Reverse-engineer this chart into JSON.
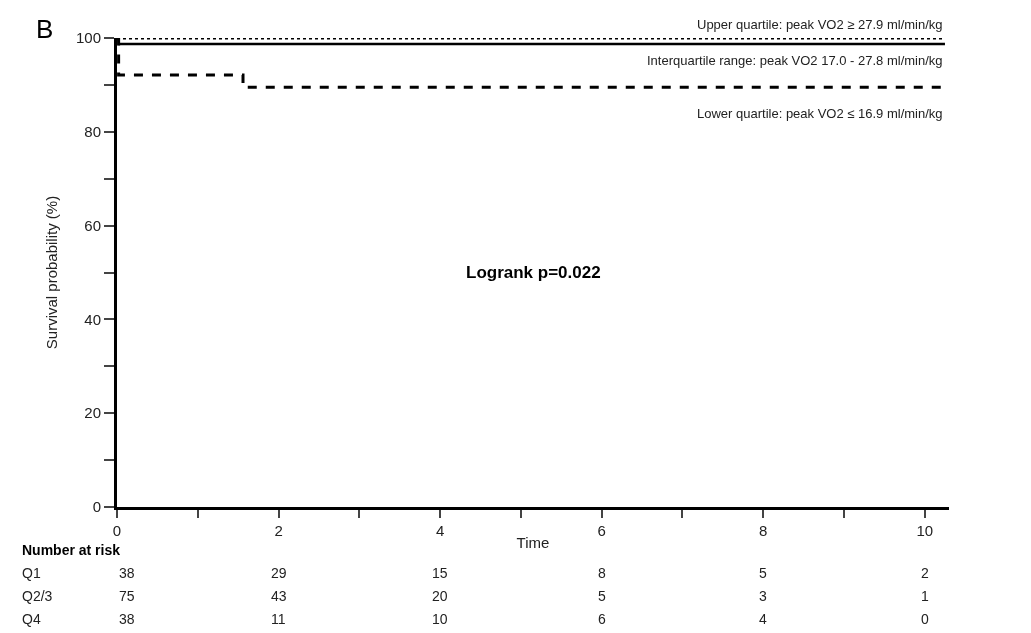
{
  "chart_data": {
    "type": "step",
    "ylabel": "Survival probability (%)",
    "xlabel": "Time",
    "xlim": [
      0,
      10.3
    ],
    "ylim": [
      0,
      100
    ],
    "xticks": [
      0,
      {
        "value": 1,
        "label": null
      },
      2,
      {
        "value": 3,
        "label": null
      },
      4,
      {
        "value": 5,
        "label": null
      },
      6,
      {
        "value": 7,
        "label": null
      },
      8,
      {
        "value": 9,
        "label": null
      },
      10
    ],
    "yticks": [
      0,
      {
        "value": 10,
        "label": null
      },
      20,
      {
        "value": 30,
        "label": null
      },
      40,
      {
        "value": 50,
        "label": null
      },
      60,
      {
        "value": 70,
        "label": null
      },
      80,
      {
        "value": 90,
        "label": null
      },
      100
    ],
    "legend": false,
    "series": [
      {
        "name": "Upper quartile: peak VO2 ≥ 27.9 ml/min/kg",
        "color": "#000000",
        "line_style": "dotted",
        "x": [
          0,
          10.25
        ],
        "values": [
          100,
          100
        ]
      },
      {
        "name": "Interquartile range: peak VO2 17.0 - 27.8 ml/min/kg",
        "color": "#000000",
        "line_style": "solid",
        "x": [
          0,
          0.02,
          10.25
        ],
        "values": [
          100,
          98.7,
          98.7
        ]
      },
      {
        "name": "Lower quartile: peak VO2 ≤ 16.9 ml/min/kg",
        "color": "#000000",
        "line_style": "dashed",
        "x": [
          0,
          0.02,
          1.56,
          10.25
        ],
        "values": [
          100,
          92.1,
          89.5,
          89.5
        ]
      }
    ],
    "annotations": [
      "B",
      "Logrank p=0.022",
      "Number at risk",
      "Q1",
      "38",
      "29",
      "15",
      "8",
      "5",
      "2",
      "Q2/3",
      "75",
      "43",
      "20",
      "5",
      "3",
      "1",
      "Q4",
      "38",
      "11",
      "10",
      "6",
      "4",
      "0"
    ]
  }
}
